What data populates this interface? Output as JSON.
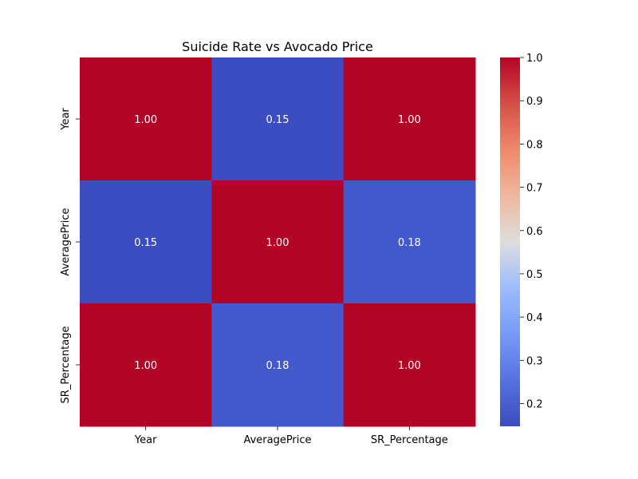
{
  "chart_data": {
    "type": "heatmap",
    "title": "Suicide Rate vs Avocado Price",
    "xlabel": "",
    "ylabel": "",
    "x_categories": [
      "Year",
      "AveragePrice",
      "SR_Percentage"
    ],
    "y_categories": [
      "Year",
      "AveragePrice",
      "SR_Percentage"
    ],
    "matrix": [
      [
        1.0,
        0.15,
        1.0
      ],
      [
        0.15,
        1.0,
        0.18
      ],
      [
        1.0,
        0.18,
        1.0
      ]
    ],
    "cell_labels": [
      [
        "1.00",
        "0.15",
        "1.00"
      ],
      [
        "0.15",
        "1.00",
        "0.18"
      ],
      [
        "1.00",
        "0.18",
        "1.00"
      ]
    ],
    "colormap": "coolwarm",
    "colorbar": {
      "range": [
        0.1475,
        1.0
      ],
      "ticks": [
        0.2,
        0.3,
        0.4,
        0.5,
        0.6,
        0.7,
        0.8,
        0.9,
        1.0
      ],
      "tick_labels": [
        "0.2",
        "0.3",
        "0.4",
        "0.5",
        "0.6",
        "0.7",
        "0.8",
        "0.9",
        "1.0"
      ]
    },
    "colors": {
      "low": "#3b4cc0",
      "mid": "#dddddd",
      "high": "#b40426",
      "annotation_text": "#ffffff"
    }
  }
}
